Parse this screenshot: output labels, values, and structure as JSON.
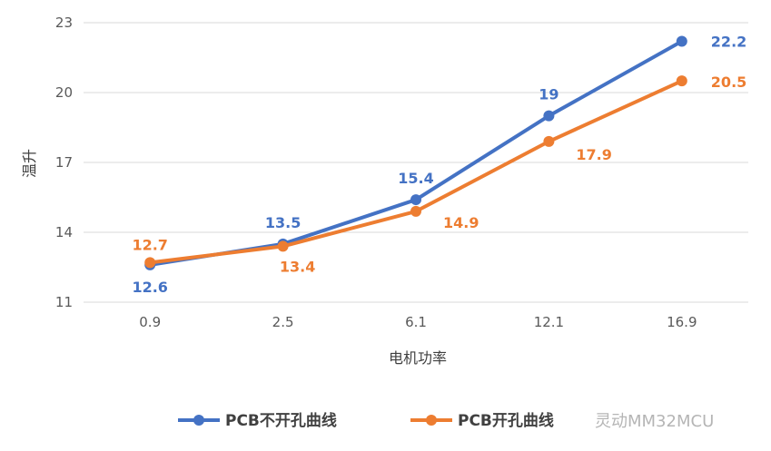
{
  "chart_data": {
    "type": "line",
    "title": "",
    "xlabel": "电机功率",
    "ylabel": "温升",
    "categories": [
      "0.9",
      "2.5",
      "6.1",
      "12.1",
      "16.9"
    ],
    "ylim": [
      11,
      23
    ],
    "yticks": [
      11,
      14,
      17,
      20,
      23
    ],
    "grid": true,
    "legend_position": "bottom",
    "series": [
      {
        "name": "PCB不开孔曲线",
        "color": "#4472C4",
        "values": [
          12.6,
          13.5,
          15.4,
          19,
          22.2
        ],
        "labels": [
          "12.6",
          "13.5",
          "15.4",
          "19",
          "22.2"
        ]
      },
      {
        "name": "PCB开孔曲线",
        "color": "#ED7D31",
        "values": [
          12.7,
          13.4,
          14.9,
          17.9,
          20.5
        ],
        "labels": [
          "12.7",
          "13.4",
          "14.9",
          "17.9",
          "20.5"
        ]
      }
    ]
  },
  "watermark": "灵动MM32MCU"
}
